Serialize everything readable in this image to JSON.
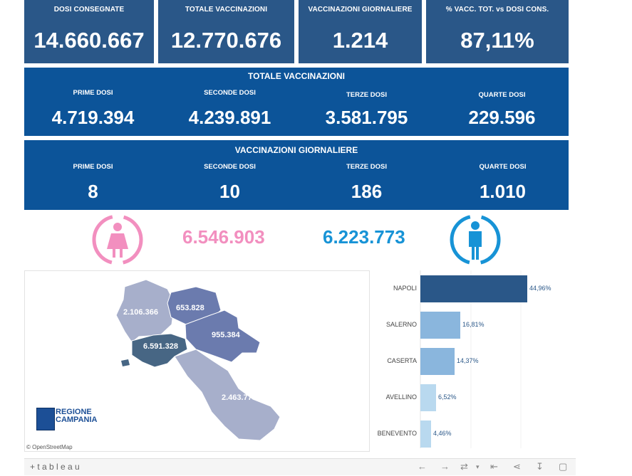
{
  "kpis": [
    {
      "label": "DOSI  CONSEGNATE",
      "value": "14.660.667"
    },
    {
      "label": "TOTALE VACCINAZIONI",
      "value": "12.770.676"
    },
    {
      "label": "VACCINAZIONI GIORNALIERE",
      "value": "1.214"
    },
    {
      "label": "% VACC. TOT. vs DOSI CONS.",
      "value": "87,11%"
    }
  ],
  "totale": {
    "title": "TOTALE VACCINAZIONI",
    "cells": [
      {
        "label": "PRIME DOSI",
        "value": "4.719.394"
      },
      {
        "label": "SECONDE DOSI",
        "value": "4.239.891"
      },
      {
        "label": "TERZE DOSI",
        "value": "3.581.795"
      },
      {
        "label": "QUARTE DOSI",
        "value": "229.596"
      }
    ]
  },
  "giornaliere": {
    "title": "VACCINAZIONI GIORNALIERE",
    "cells": [
      {
        "label": "PRIME DOSI",
        "value": "8"
      },
      {
        "label": "SECONDE DOSI",
        "value": "10"
      },
      {
        "label": "TERZE DOSI",
        "value": "186"
      },
      {
        "label": "QUARTE DOSI",
        "value": "1.010"
      }
    ]
  },
  "gender": {
    "female_value": "6.546.903",
    "male_value": "6.223.773",
    "female_color": "#f28fbf",
    "male_color": "#1793d6"
  },
  "map": {
    "labels": {
      "caserta": "2.106.366",
      "benevento": "653.828",
      "avellino": "955.384",
      "napoli": "6.591.328",
      "salerno": "2.463.770"
    },
    "logo_line1": "REGIONE",
    "logo_line2": "CAMPANIA",
    "attribution": "© OpenStreetMap"
  },
  "chart_data": {
    "type": "bar",
    "orientation": "horizontal",
    "categories": [
      "NAPOLI",
      "SALERNO",
      "CASERTA",
      "AVELLINO",
      "BENEVENTO"
    ],
    "values": [
      44.96,
      16.81,
      14.37,
      6.52,
      4.46
    ],
    "value_labels": [
      "44,96%",
      "16,81%",
      "14,37%",
      "6,52%",
      "4,46%"
    ],
    "colors": [
      "#2a5788",
      "#8ab6dd",
      "#8ab6dd",
      "#b9d9ef",
      "#b9d9ef"
    ],
    "xlim": [
      0,
      48
    ]
  },
  "toolbar": {
    "brand": "+ t a b l e a u"
  }
}
